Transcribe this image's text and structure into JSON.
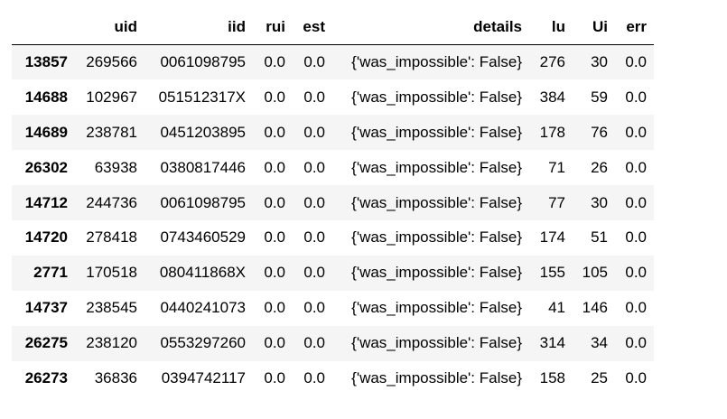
{
  "table": {
    "index_header": "",
    "columns": [
      "uid",
      "iid",
      "rui",
      "est",
      "details",
      "lu",
      "Ui",
      "err"
    ],
    "rows": [
      {
        "index": "13857",
        "uid": "269566",
        "iid": "0061098795",
        "rui": "0.0",
        "est": "0.0",
        "details": "{'was_impossible': False}",
        "lu": "276",
        "ui": "30",
        "err": "0.0"
      },
      {
        "index": "14688",
        "uid": "102967",
        "iid": "051512317X",
        "rui": "0.0",
        "est": "0.0",
        "details": "{'was_impossible': False}",
        "lu": "384",
        "ui": "59",
        "err": "0.0"
      },
      {
        "index": "14689",
        "uid": "238781",
        "iid": "0451203895",
        "rui": "0.0",
        "est": "0.0",
        "details": "{'was_impossible': False}",
        "lu": "178",
        "ui": "76",
        "err": "0.0"
      },
      {
        "index": "26302",
        "uid": "63938",
        "iid": "0380817446",
        "rui": "0.0",
        "est": "0.0",
        "details": "{'was_impossible': False}",
        "lu": "71",
        "ui": "26",
        "err": "0.0"
      },
      {
        "index": "14712",
        "uid": "244736",
        "iid": "0061098795",
        "rui": "0.0",
        "est": "0.0",
        "details": "{'was_impossible': False}",
        "lu": "77",
        "ui": "30",
        "err": "0.0"
      },
      {
        "index": "14720",
        "uid": "278418",
        "iid": "0743460529",
        "rui": "0.0",
        "est": "0.0",
        "details": "{'was_impossible': False}",
        "lu": "174",
        "ui": "51",
        "err": "0.0"
      },
      {
        "index": "2771",
        "uid": "170518",
        "iid": "080411868X",
        "rui": "0.0",
        "est": "0.0",
        "details": "{'was_impossible': False}",
        "lu": "155",
        "ui": "105",
        "err": "0.0"
      },
      {
        "index": "14737",
        "uid": "238545",
        "iid": "0440241073",
        "rui": "0.0",
        "est": "0.0",
        "details": "{'was_impossible': False}",
        "lu": "41",
        "ui": "146",
        "err": "0.0"
      },
      {
        "index": "26275",
        "uid": "238120",
        "iid": "0553297260",
        "rui": "0.0",
        "est": "0.0",
        "details": "{'was_impossible': False}",
        "lu": "314",
        "ui": "34",
        "err": "0.0"
      },
      {
        "index": "26273",
        "uid": "36836",
        "iid": "0394742117",
        "rui": "0.0",
        "est": "0.0",
        "details": "{'was_impossible': False}",
        "lu": "158",
        "ui": "25",
        "err": "0.0"
      }
    ]
  }
}
